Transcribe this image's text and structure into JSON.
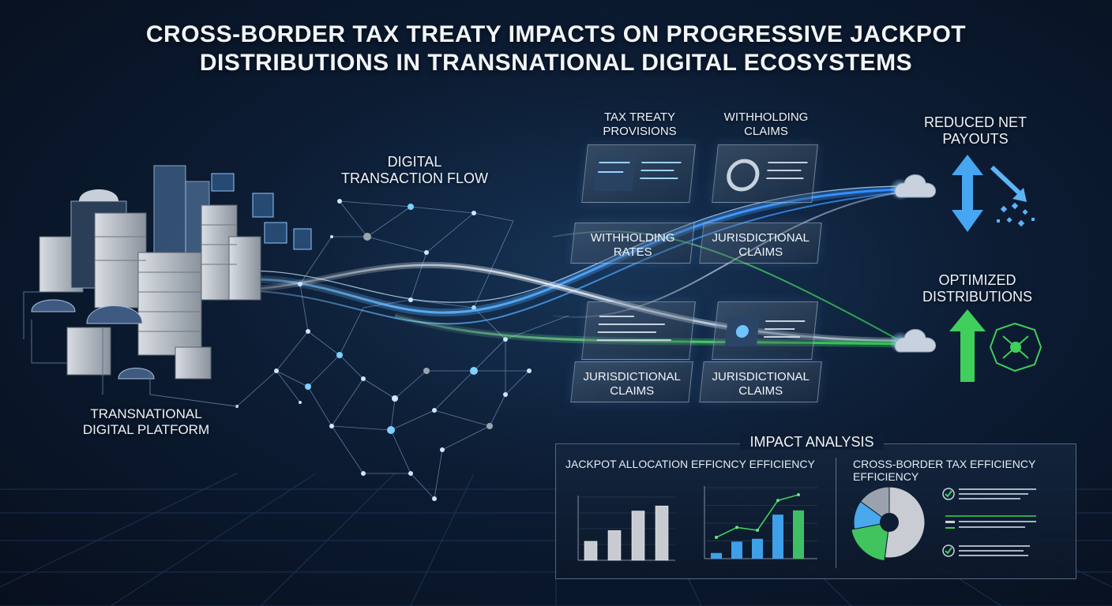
{
  "title": {
    "line1": "CROSS-BORDER TAX TREATY IMPACTS ON PROGRESSIVE JACKPOT",
    "line2": "DISTRIBUTIONS IN TRANSNATIONAL DIGITAL ECOSYSTEMS"
  },
  "labels": {
    "platform_line1": "TRANSNATIONAL",
    "platform_line2": "DIGITAL PLATFORM",
    "flow_line1": "DIGITAL",
    "flow_line2": "TRANSACTION FLOW",
    "provisions_line1": "TAX TREATY",
    "provisions_line2": "PROVISIONS",
    "withholding_top_line1": "WITHHOLDING",
    "withholding_top_line2": "CLAIMS",
    "reduced_line1": "REDUCED NET",
    "reduced_line2": "PAYOUTS",
    "optimized_line1": "OPTIMIZED",
    "optimized_line2": "DISTRIBUTIONS"
  },
  "panels": {
    "withholding_rates": [
      "WITHHOLDING",
      "RATES"
    ],
    "jurisdictional_claims_upper": [
      "JURISDICTIONAL",
      "CLAIMS"
    ],
    "jurisdictional_claims_lower_left": [
      "JURISDICTIONAL",
      "CLAIMS"
    ],
    "jurisdictional_claims_lower_right": [
      "JURISDICTIONAL",
      "CLAIMS"
    ]
  },
  "impact": {
    "heading": "IMPACT ANALYSIS",
    "left_title": "JACKPOT ALLOCATION EFFICNCY EFFICIENCY",
    "right_title_line1": "CROSS-BORDER TAX EFFICIENCY",
    "right_title_line2": "EFFICIENCY"
  },
  "colors": {
    "blue_flow": "#4fa8ff",
    "green_flow": "#4fd66a",
    "reduced_arrow": "#46a6f2",
    "optimized_arrow": "#3fcf5a",
    "bar_silver": "#c8ccd2"
  },
  "chart_data": [
    {
      "type": "bar",
      "title": "JACKPOT ALLOCATION EFFICNCY EFFICIENCY",
      "values": [
        30,
        47,
        78,
        86
      ],
      "ylim": [
        0,
        100
      ]
    },
    {
      "type": "bar",
      "values": [
        8,
        24,
        28,
        62,
        68
      ],
      "line_values": [
        30,
        44,
        40,
        82,
        90
      ],
      "ylim": [
        0,
        100
      ]
    },
    {
      "type": "pie",
      "title": "CROSS-BORDER TAX EFFICIENCY",
      "slices": [
        {
          "value": 52,
          "color": "#c9cdd3"
        },
        {
          "value": 20,
          "color": "#40c45e"
        },
        {
          "value": 13,
          "color": "#4aa8ec"
        },
        {
          "value": 15,
          "color": "#9aa2ad"
        }
      ]
    }
  ]
}
